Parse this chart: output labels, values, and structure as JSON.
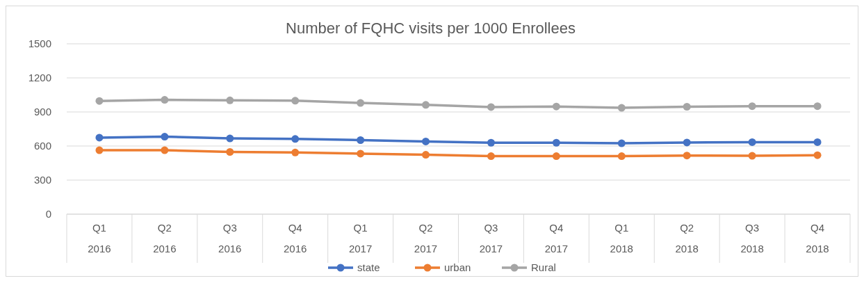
{
  "chart_data": {
    "type": "line",
    "title": "Number of FQHC visits per 1000 Enrollees",
    "categories": [
      "Q1\n2016",
      "Q2\n2016",
      "Q3\n2016",
      "Q4\n2016",
      "Q1\n2017",
      "Q2\n2017",
      "Q3\n2017",
      "Q4\n2017",
      "Q1\n2018",
      "Q2\n2018",
      "Q3\n2018",
      "Q4\n2018"
    ],
    "series": [
      {
        "name": "state",
        "color": "#4472c4",
        "values": [
          674,
          682,
          667,
          662,
          652,
          640,
          629,
          629,
          624,
          631,
          634,
          634
        ]
      },
      {
        "name": "urban",
        "color": "#ed7d31",
        "values": [
          563,
          563,
          548,
          543,
          533,
          523,
          511,
          511,
          511,
          516,
          514,
          519
        ]
      },
      {
        "name": "Rural",
        "color": "#a5a5a5",
        "values": [
          997,
          1007,
          1002,
          999,
          979,
          962,
          943,
          948,
          936,
          946,
          951,
          951
        ]
      }
    ],
    "ylim": [
      0,
      1500
    ],
    "yticks": [
      0,
      300,
      600,
      900,
      1200,
      1500
    ],
    "grid": "y",
    "legend": "bottom",
    "marker": "circle",
    "line_style": "solid"
  }
}
